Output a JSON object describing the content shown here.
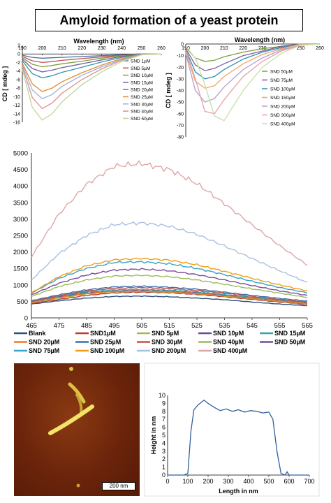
{
  "title": "Amyloid formation of a yeast protein",
  "colors": {
    "SND 1µM": "#4a6fa5",
    "SND 5µM": "#c0504d",
    "SND 10µM": "#7f9f3f",
    "SND 15µM": "#7b5fa0",
    "SND 20µM": "#2e9aa8",
    "SND 25µM": "#e8872d",
    "SND 30µM": "#9bb0d8",
    "SND 40µM": "#d98f8d",
    "SND 50µM": "#bcd89a",
    "SND 75µM": "#2f8fb0",
    "SND 100µM": "#f28e2b",
    "SND 150µM": "#f4a460",
    "SND 200µM": "#b39fcf",
    "SND 300µM": "#e8a0a8",
    "SND 400µM": "#c6e0a8",
    "Blank": "#2b4c7e",
    "SND1µM": "#c0392b",
    "SND 5µM_f": "#9bbb59",
    "SND 10µM_f": "#6a4a8c",
    "SND 15µM_f": "#31a2ad",
    "SND 20µM_f": "#e67e22",
    "SND 25µM_f": "#3d6eb4",
    "SND 30µM_f": "#c0504d",
    "SND 40µM_f": "#9bbb59",
    "SND 50µM_f": "#7a4a9a",
    "SND 75µM_f": "#36a3c9",
    "SND 100µM_f": "#f39c12",
    "SND 200µM_f": "#a9c0e0",
    "SND 400µM_f": "#e0a5a5"
  },
  "chart_data": [
    {
      "type": "line",
      "xlabel": "Wavelength (nm)",
      "ylabel": "CD [ mdeg ]",
      "xlim": [
        190,
        260
      ],
      "ylim": [
        -16,
        2
      ],
      "xticks": [
        190,
        200,
        210,
        220,
        230,
        240,
        250,
        260
      ],
      "yticks": [
        2,
        0,
        -2,
        -4,
        -6,
        -8,
        -10,
        -12,
        -14,
        -16
      ],
      "legend_position": "right",
      "series": [
        {
          "name": "SND 1µM",
          "color": "#4a6fa5",
          "x": [
            190,
            195,
            200,
            205,
            210,
            220,
            230,
            240,
            250,
            260
          ],
          "y": [
            -0.3,
            -0.8,
            -1.0,
            -0.9,
            -0.8,
            -0.6,
            -0.4,
            -0.2,
            0,
            0
          ]
        },
        {
          "name": "SND 5µM",
          "color": "#c0504d",
          "x": [
            190,
            195,
            200,
            205,
            210,
            220,
            230,
            240,
            250,
            260
          ],
          "y": [
            -0.6,
            -1.6,
            -2.0,
            -1.8,
            -1.5,
            -1.1,
            -0.7,
            -0.3,
            0,
            0
          ]
        },
        {
          "name": "SND 10µM",
          "color": "#7f9f3f",
          "x": [
            190,
            195,
            200,
            205,
            210,
            220,
            230,
            240,
            250,
            260
          ],
          "y": [
            -0.9,
            -2.4,
            -3.0,
            -2.7,
            -2.3,
            -1.7,
            -1.0,
            -0.4,
            0,
            0
          ]
        },
        {
          "name": "SND 15µM",
          "color": "#7b5fa0",
          "x": [
            190,
            195,
            200,
            205,
            210,
            220,
            230,
            240,
            250,
            260
          ],
          "y": [
            -1.2,
            -3.4,
            -4.2,
            -3.8,
            -3.2,
            -2.3,
            -1.4,
            -0.6,
            0,
            0
          ]
        },
        {
          "name": "SND 20µM",
          "color": "#2e9aa8",
          "x": [
            190,
            195,
            200,
            205,
            210,
            220,
            230,
            240,
            250,
            260
          ],
          "y": [
            -1.6,
            -4.6,
            -5.6,
            -5.1,
            -4.3,
            -3.1,
            -1.9,
            -0.8,
            0,
            0
          ]
        },
        {
          "name": "SND 25µM",
          "color": "#e8872d",
          "x": [
            190,
            195,
            200,
            205,
            210,
            220,
            230,
            240,
            250,
            260
          ],
          "y": [
            -2.2,
            -7.0,
            -8.8,
            -8.0,
            -6.5,
            -4.4,
            -2.6,
            -1.1,
            -0.1,
            0
          ]
        },
        {
          "name": "SND 30µM",
          "color": "#9bb0d8",
          "x": [
            190,
            195,
            200,
            205,
            210,
            220,
            230,
            240,
            250,
            260
          ],
          "y": [
            -2.6,
            -8.4,
            -10.5,
            -9.5,
            -7.6,
            -5.0,
            -3.0,
            -1.3,
            -0.1,
            0
          ]
        },
        {
          "name": "SND 40µM",
          "color": "#d98f8d",
          "x": [
            190,
            195,
            200,
            205,
            210,
            220,
            230,
            240,
            250,
            260
          ],
          "y": [
            -3.0,
            -10.2,
            -12.8,
            -11.5,
            -9.2,
            -6.0,
            -3.5,
            -1.5,
            -0.1,
            0
          ]
        },
        {
          "name": "SND 50µM",
          "color": "#bcd89a",
          "x": [
            190,
            195,
            200,
            205,
            210,
            220,
            230,
            240,
            250,
            260
          ],
          "y": [
            -3.6,
            -12.5,
            -15.5,
            -14.0,
            -11.2,
            -7.2,
            -4.2,
            -1.8,
            -0.2,
            0
          ]
        }
      ]
    },
    {
      "type": "line",
      "xlabel": "Wavelength (nm)",
      "ylabel": "CD [ mdeg ]",
      "xlim": [
        190,
        260
      ],
      "ylim": [
        -80,
        0
      ],
      "xticks": [
        190,
        200,
        210,
        220,
        230,
        240,
        250,
        260
      ],
      "yticks": [
        0,
        -10,
        -20,
        -30,
        -40,
        -50,
        -60,
        -70,
        -80
      ],
      "legend_position": "right",
      "series": [
        {
          "name": "SND 50µM",
          "color": "#7f9f3f",
          "x": [
            190,
            195,
            200,
            205,
            210,
            220,
            230,
            240,
            250,
            260
          ],
          "y": [
            -3,
            -12,
            -15,
            -14,
            -11,
            -7,
            -4,
            -2,
            0,
            0
          ]
        },
        {
          "name": "SND 75µM",
          "color": "#7b5fa0",
          "x": [
            190,
            195,
            200,
            205,
            210,
            220,
            230,
            240,
            250,
            260
          ],
          "y": [
            -4,
            -18,
            -23,
            -21,
            -17,
            -10,
            -6,
            -2,
            0,
            0
          ]
        },
        {
          "name": "SND 100µM",
          "color": "#2f8fb0",
          "x": [
            190,
            195,
            200,
            205,
            210,
            220,
            230,
            240,
            250,
            260
          ],
          "y": [
            -5,
            -24,
            -30,
            -28,
            -22,
            -13,
            -7,
            -3,
            0,
            0
          ]
        },
        {
          "name": "SND 150µM",
          "color": "#f4a460",
          "x": [
            190,
            195,
            200,
            205,
            210,
            220,
            230,
            240,
            250,
            260
          ],
          "y": [
            -7,
            -32,
            -38,
            -36,
            -28,
            -17,
            -9,
            -4,
            0,
            0
          ]
        },
        {
          "name": "SND 200µM",
          "color": "#b39fcf",
          "x": [
            190,
            195,
            200,
            205,
            210,
            220,
            230,
            240,
            250,
            260
          ],
          "y": [
            -8,
            -40,
            -50,
            -47,
            -37,
            -22,
            -12,
            -5,
            -1,
            0
          ]
        },
        {
          "name": "SND 300µM",
          "color": "#e8a0a8",
          "x": [
            190,
            195,
            200,
            205,
            210,
            220,
            230,
            240,
            250,
            260
          ],
          "y": [
            -5,
            -30,
            -58,
            -60,
            -48,
            -28,
            -15,
            -6,
            -1,
            0
          ]
        },
        {
          "name": "SND 400µM",
          "color": "#c6e0a8",
          "x": [
            190,
            195,
            200,
            205,
            210,
            220,
            230,
            240,
            250,
            260
          ],
          "y": [
            -2,
            -12,
            -35,
            -62,
            -66,
            -40,
            -20,
            -8,
            -1,
            0
          ]
        }
      ]
    },
    {
      "type": "line",
      "xlim": [
        465,
        565
      ],
      "ylim": [
        0,
        5000
      ],
      "xticks": [
        465,
        475,
        485,
        495,
        505,
        515,
        525,
        535,
        545,
        555,
        565
      ],
      "yticks": [
        0,
        500,
        1000,
        1500,
        2000,
        2500,
        3000,
        3500,
        4000,
        4500,
        5000
      ],
      "legend_position": "bottom",
      "x": [
        465,
        475,
        485,
        495,
        505,
        515,
        525,
        535,
        545,
        555,
        565
      ],
      "series": [
        {
          "name": "Blank",
          "color": "#2b4c7e",
          "values": [
            420,
            520,
            600,
            650,
            660,
            640,
            600,
            550,
            480,
            420,
            370
          ]
        },
        {
          "name": "SND1µM",
          "color": "#c0392b",
          "values": [
            440,
            560,
            680,
            760,
            780,
            760,
            710,
            640,
            560,
            480,
            410
          ]
        },
        {
          "name": "SND 5µM",
          "color": "#9bbb59",
          "values": [
            460,
            600,
            720,
            790,
            800,
            780,
            730,
            660,
            580,
            500,
            430
          ]
        },
        {
          "name": "SND 10µM",
          "color": "#6a4a8c",
          "values": [
            480,
            640,
            760,
            820,
            830,
            810,
            760,
            690,
            600,
            520,
            450
          ]
        },
        {
          "name": "SND 15µM",
          "color": "#31a2ad",
          "values": [
            500,
            660,
            790,
            850,
            860,
            840,
            790,
            710,
            620,
            540,
            470
          ]
        },
        {
          "name": "SND 20µM",
          "color": "#e67e22",
          "values": [
            470,
            620,
            740,
            800,
            810,
            790,
            740,
            670,
            590,
            510,
            440
          ]
        },
        {
          "name": "SND 25µM",
          "color": "#3d6eb4",
          "values": [
            520,
            700,
            850,
            940,
            960,
            930,
            870,
            780,
            680,
            590,
            510
          ]
        },
        {
          "name": "SND 30µM",
          "color": "#c0504d",
          "values": [
            500,
            680,
            820,
            900,
            920,
            890,
            830,
            750,
            650,
            560,
            480
          ]
        },
        {
          "name": "SND 40µM",
          "color": "#9bbb59",
          "values": [
            650,
            950,
            1150,
            1270,
            1290,
            1250,
            1150,
            1020,
            880,
            750,
            620
          ]
        },
        {
          "name": "SND 50µM",
          "color": "#7a4a9a",
          "values": [
            700,
            1050,
            1300,
            1450,
            1480,
            1430,
            1310,
            1150,
            980,
            820,
            680
          ]
        },
        {
          "name": "SND 75µM",
          "color": "#36a3c9",
          "values": [
            750,
            1200,
            1500,
            1680,
            1700,
            1640,
            1500,
            1310,
            1110,
            920,
            760
          ]
        },
        {
          "name": "SND 100µM",
          "color": "#f39c12",
          "values": [
            760,
            1250,
            1580,
            1760,
            1800,
            1750,
            1610,
            1410,
            1200,
            1000,
            820
          ]
        },
        {
          "name": "SND 200µM",
          "color": "#a9c0e0",
          "values": [
            1150,
            1950,
            2500,
            2830,
            2880,
            2780,
            2530,
            2180,
            1800,
            1430,
            1070
          ]
        },
        {
          "name": "SND 400µM",
          "color": "#e0a5a5",
          "values": [
            1850,
            3150,
            4050,
            4600,
            4680,
            4500,
            4070,
            3460,
            2820,
            2190,
            1600
          ]
        }
      ]
    },
    {
      "type": "line",
      "xlabel": "Length in nm",
      "ylabel": "Height in nm",
      "xlim": [
        0,
        700
      ],
      "ylim": [
        0,
        10
      ],
      "xticks": [
        0,
        100,
        200,
        300,
        400,
        500,
        600,
        700
      ],
      "yticks": [
        0,
        1,
        2,
        3,
        4,
        5,
        6,
        7,
        8,
        9,
        10
      ],
      "x": [
        0,
        80,
        100,
        115,
        130,
        150,
        180,
        200,
        230,
        260,
        290,
        320,
        350,
        380,
        410,
        440,
        470,
        500,
        520,
        540,
        560,
        580,
        590,
        600,
        620,
        700
      ],
      "y": [
        0,
        0,
        0.2,
        5.5,
        8.2,
        8.8,
        9.4,
        9.0,
        8.5,
        8.1,
        8.3,
        8.0,
        8.2,
        7.9,
        8.1,
        8.0,
        7.8,
        7.9,
        7.0,
        3.0,
        0.2,
        0,
        0.4,
        0,
        0,
        0
      ],
      "scale_bar": "200 nm"
    }
  ]
}
